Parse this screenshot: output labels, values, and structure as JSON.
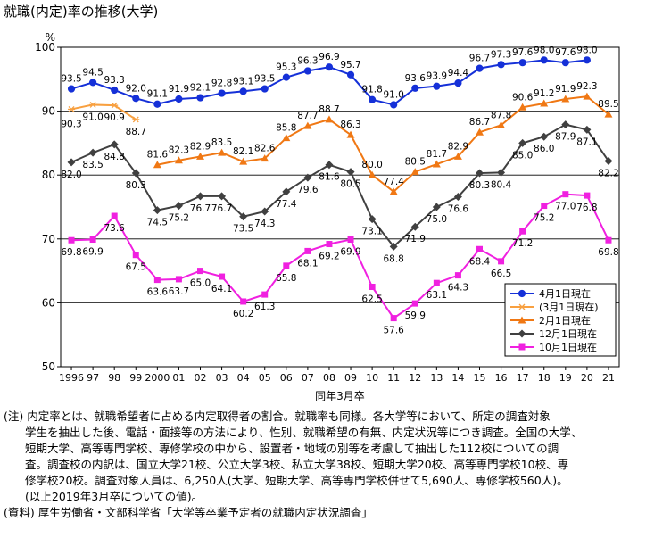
{
  "title": "就職(内定)率の推移(大学)",
  "notes": {
    "note_heading": "(注) 内定率とは、就職希望者に占める内定取得者の割合。就職率も同様。各大学等において、所定の調査対象",
    "note_lines": [
      "学生を抽出した後、電話・面接等の方法により、性別、就職希望の有無、内定状況等につき調査。全国の大学、",
      "短期大学、高等専門学校、専修学校の中から、設置者・地域の別等を考慮して抽出した112校についての調",
      "査。調査校の内訳は、国立大学21校、公立大学3校、私立大学38校、短期大学20校、高等専門学校10校、専",
      "修学校20校。調査対象人員は、6,250人(大学、短期大学、高等専門学校併せて5,690人、専修学校560人)。",
      "(以上2019年3月卒についての値)。"
    ],
    "source": "(資料) 厚生労働省・文部科学省「大学等卒業予定者の就職内定状況調査」"
  },
  "chart_data": {
    "type": "line",
    "title": "就職(内定)率の推移(大学)",
    "ylabel": "%",
    "xlabel": "同年3月卒",
    "ylim": [
      50,
      100
    ],
    "yticks": [
      50,
      60,
      70,
      80,
      90,
      100
    ],
    "grid": true,
    "legend_position": "bottom-right",
    "categories": [
      "1996",
      "97",
      "98",
      "99",
      "2000",
      "01",
      "02",
      "03",
      "04",
      "05",
      "06",
      "07",
      "08",
      "09",
      "10",
      "11",
      "12",
      "13",
      "14",
      "15",
      "16",
      "17",
      "18",
      "19",
      "20",
      "21"
    ],
    "series": [
      {
        "name": "4月1日現在",
        "color": "#1530d8",
        "marker": "circle",
        "values": [
          93.5,
          94.5,
          93.3,
          92.0,
          91.1,
          91.9,
          92.1,
          92.8,
          93.1,
          93.5,
          95.3,
          96.3,
          96.9,
          95.7,
          91.8,
          91.0,
          93.6,
          93.9,
          94.4,
          96.7,
          97.3,
          97.6,
          98.0,
          97.6,
          98.0,
          null
        ]
      },
      {
        "name": "(3月1日現在)",
        "color": "#f8a040",
        "marker": "asterisk",
        "values": [
          90.3,
          91.0,
          90.9,
          88.7,
          null,
          null,
          null,
          null,
          null,
          null,
          null,
          null,
          null,
          null,
          null,
          null,
          null,
          null,
          null,
          null,
          null,
          null,
          null,
          null,
          null,
          null
        ]
      },
      {
        "name": "2月1日現在",
        "color": "#f07814",
        "marker": "triangle",
        "values": [
          null,
          null,
          null,
          null,
          81.6,
          82.3,
          82.9,
          83.5,
          82.1,
          82.6,
          85.8,
          87.7,
          88.7,
          86.3,
          80.0,
          77.4,
          80.5,
          81.7,
          82.9,
          86.7,
          87.8,
          90.6,
          91.2,
          91.9,
          92.3,
          89.5
        ]
      },
      {
        "name": "12月1日現在",
        "color": "#404040",
        "marker": "diamond",
        "values": [
          82.0,
          83.5,
          84.8,
          80.3,
          74.5,
          75.2,
          76.7,
          76.7,
          73.5,
          74.3,
          77.4,
          79.6,
          81.6,
          80.5,
          73.1,
          68.8,
          71.9,
          75.0,
          76.6,
          80.3,
          80.4,
          85.0,
          86.0,
          87.9,
          87.1,
          82.2
        ]
      },
      {
        "name": "10月1日現在",
        "color": "#f020e0",
        "marker": "square",
        "values": [
          69.8,
          69.9,
          73.6,
          67.5,
          63.6,
          63.7,
          65.0,
          64.1,
          60.2,
          61.3,
          65.8,
          68.1,
          69.2,
          69.9,
          62.5,
          57.6,
          59.9,
          63.1,
          64.3,
          68.4,
          66.5,
          71.2,
          75.2,
          77.0,
          76.8,
          69.8
        ]
      }
    ],
    "data_labels": [
      [
        "93.5",
        "94.5",
        "93.3",
        "92.0",
        "91.1",
        "91.9",
        "92.1",
        "92.8",
        "93.1",
        "93.5",
        "95.3",
        "96.3",
        "96.9",
        "95.7",
        "91.8",
        "91.0",
        "93.6",
        "93.9",
        "94.4",
        "96.7",
        "97.3",
        "97.6",
        "98.0",
        "97.6",
        "98.0",
        null
      ],
      [
        "90.3",
        "91.0",
        "90.9",
        "88.7",
        null,
        null,
        null,
        null,
        null,
        null,
        null,
        null,
        null,
        null,
        null,
        null,
        null,
        null,
        null,
        null,
        null,
        null,
        null,
        null,
        null,
        null
      ],
      [
        null,
        null,
        null,
        null,
        "81.6",
        "82.3",
        "82.9",
        "83.5",
        "82.1",
        "82.6",
        "85.8",
        "87.7",
        "88.7",
        "86.3",
        "80.0",
        "77.4",
        "80.5",
        "81.7",
        "82.9",
        "86.7",
        "87.8",
        "90.6",
        "91.2",
        "91.9",
        "92.3",
        "89.5"
      ],
      [
        "82.0",
        "83.5",
        "84.8",
        "80.3",
        "74.5",
        "75.2",
        "76.7",
        "76.7",
        "73.5",
        "74.3",
        "77.4",
        "79.6",
        "81.6",
        "80.5",
        "73.1",
        "68.8",
        "71.9",
        "75.0",
        "76.6",
        "80.3",
        "80.4",
        "85.0",
        "86.0",
        "87.9",
        "87.1",
        "82.2"
      ],
      [
        "69.8",
        "69.9",
        "73.6",
        "67.5",
        "63.6",
        "63.7",
        "65.0",
        "64.1",
        "60.2",
        "61.3",
        "65.8",
        "68.1",
        "69.2",
        "69.9",
        "62.5",
        "57.6",
        "59.9",
        "63.1",
        "64.3",
        "68.4",
        "66.5",
        "71.2",
        "75.2",
        "77.0",
        "76.8",
        "69.8"
      ]
    ]
  }
}
